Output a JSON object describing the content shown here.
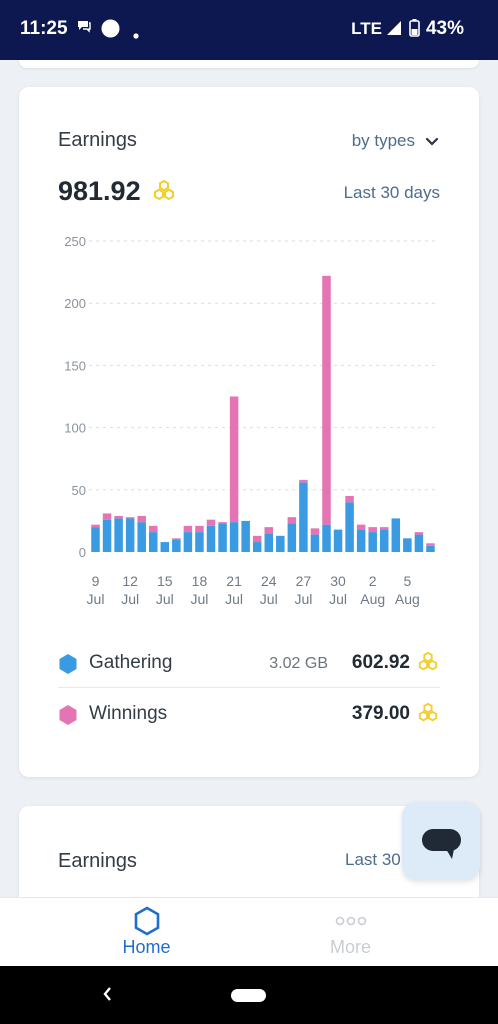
{
  "status_bar": {
    "time": "11:25",
    "network": "LTE",
    "battery": "43%"
  },
  "card": {
    "title": "Earnings",
    "filter_label": "by types",
    "total": "981.92",
    "period": "Last 30 days",
    "legend": [
      {
        "label": "Gathering",
        "size": "3.02 GB",
        "amount": "602.92",
        "color": "#3a9be2"
      },
      {
        "label": "Winnings",
        "size": "",
        "amount": "379.00",
        "color": "#e574b5"
      }
    ]
  },
  "card2": {
    "title": "Earnings",
    "period": "Last 30"
  },
  "nav": {
    "home": "Home",
    "more": "More"
  },
  "colors": {
    "gathering": "#3a9be2",
    "winnings": "#e574b5",
    "accent": "#1f6ecb",
    "coin": "#f2cf2a"
  },
  "chart_data": {
    "type": "bar",
    "stacked": true,
    "ylim": [
      0,
      250
    ],
    "yticks": [
      "0",
      "50",
      "100",
      "150",
      "200",
      "250"
    ],
    "grid": true,
    "xticks": [
      {
        "day": "9",
        "month": "Jul"
      },
      {
        "day": "12",
        "month": "Jul"
      },
      {
        "day": "15",
        "month": "Jul"
      },
      {
        "day": "18",
        "month": "Jul"
      },
      {
        "day": "21",
        "month": "Jul"
      },
      {
        "day": "24",
        "month": "Jul"
      },
      {
        "day": "27",
        "month": "Jul"
      },
      {
        "day": "30",
        "month": "Jul"
      },
      {
        "day": "2",
        "month": "Aug"
      },
      {
        "day": "5",
        "month": "Aug"
      }
    ],
    "series": [
      {
        "name": "Gathering",
        "values": [
          20,
          26,
          27,
          27,
          24,
          16,
          8,
          10,
          16,
          16,
          21,
          23,
          24,
          25,
          8,
          15,
          13,
          23,
          56,
          14,
          22,
          18,
          40,
          18,
          16,
          18,
          27,
          11,
          14,
          5
        ]
      },
      {
        "name": "Winnings",
        "values": [
          2,
          5,
          2,
          1,
          5,
          5,
          0,
          1,
          5,
          5,
          5,
          1,
          101,
          0,
          5,
          5,
          0,
          5,
          2,
          5,
          200,
          0,
          5,
          4,
          4,
          2,
          0,
          0,
          2,
          2
        ]
      }
    ]
  }
}
